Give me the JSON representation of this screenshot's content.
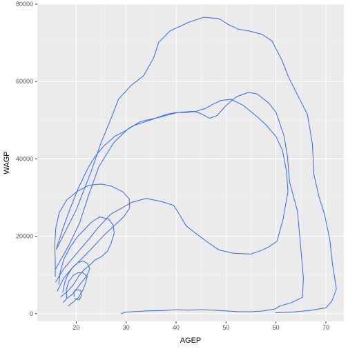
{
  "chart_data": {
    "type": "contour",
    "title": "",
    "xlabel": "AGEP",
    "ylabel": "WAGP",
    "xlim": [
      12.2,
      73.6
    ],
    "ylim": [
      -2000,
      80000
    ],
    "x_ticks": [
      20,
      30,
      40,
      50,
      60,
      70
    ],
    "y_ticks": [
      0,
      20000,
      40000,
      60000,
      80000
    ],
    "grid": true,
    "legend": "none",
    "colors": {
      "panel": "#EBEBEB",
      "grid_major": "#FFFFFF",
      "grid_minor": "#F5F5F5",
      "line": "#3366FF"
    },
    "series": [
      {
        "points": [
          [
            16,
            16600
          ],
          [
            20,
            26800
          ],
          [
            23,
            36800
          ],
          [
            25,
            44300
          ],
          [
            26.5,
            48900
          ],
          [
            28.5,
            55500
          ],
          [
            31,
            59000
          ],
          [
            33.5,
            61500
          ],
          [
            35.5,
            66100
          ],
          [
            36.5,
            70100
          ],
          [
            38.8,
            73100
          ],
          [
            42.5,
            75300
          ],
          [
            45.5,
            76600
          ],
          [
            48.5,
            76300
          ],
          [
            50.5,
            74700
          ],
          [
            52.5,
            73500
          ],
          [
            54.5,
            73100
          ],
          [
            57.2,
            72200
          ],
          [
            59.2,
            70500
          ],
          [
            61.2,
            65500
          ],
          [
            62.5,
            61200
          ],
          [
            64.8,
            55300
          ],
          [
            66.3,
            51500
          ],
          [
            67.3,
            43800
          ],
          [
            67.6,
            36000
          ],
          [
            68.6,
            30300
          ],
          [
            69.7,
            25800
          ],
          [
            70.8,
            19000
          ],
          [
            71.3,
            13000
          ],
          [
            72.1,
            6400
          ],
          [
            71.2,
            3200
          ],
          [
            70,
            1500
          ],
          [
            66.7,
            800
          ],
          [
            63.3,
            400
          ],
          [
            59.9,
            200
          ]
        ]
      },
      {
        "points": [
          [
            15.8,
            11400
          ],
          [
            18.5,
            17600
          ],
          [
            20.7,
            23500
          ],
          [
            22.5,
            30700
          ],
          [
            24.5,
            37900
          ],
          [
            27.5,
            44200
          ],
          [
            30.5,
            47900
          ],
          [
            33,
            49700
          ],
          [
            36.5,
            50700
          ],
          [
            40.3,
            52000
          ],
          [
            43.5,
            52300
          ],
          [
            45,
            51700
          ],
          [
            46.7,
            50500
          ],
          [
            48.2,
            51200
          ],
          [
            50,
            53800
          ],
          [
            52,
            56000
          ],
          [
            54.5,
            57200
          ],
          [
            56.2,
            56800
          ],
          [
            58.5,
            54500
          ],
          [
            60,
            52100
          ],
          [
            61.6,
            46000
          ],
          [
            62.3,
            40700
          ],
          [
            62.7,
            34200
          ],
          [
            64.3,
            26500
          ],
          [
            64.9,
            18100
          ],
          [
            65.5,
            9000
          ],
          [
            65.3,
            4200
          ],
          [
            63,
            2800
          ],
          [
            60.8,
            2000
          ],
          [
            59.8,
            1200
          ],
          [
            57.5,
            700
          ],
          [
            55,
            500
          ],
          [
            52.5,
            500
          ],
          [
            50,
            700
          ],
          [
            47.5,
            900
          ],
          [
            45,
            1000
          ],
          [
            42.5,
            900
          ],
          [
            40,
            1000
          ],
          [
            37.5,
            800
          ],
          [
            34,
            700
          ],
          [
            30,
            400
          ],
          [
            29,
            0
          ]
        ]
      },
      {
        "points": [
          [
            15.9,
            8200
          ],
          [
            17.5,
            11600
          ],
          [
            20.5,
            16200
          ],
          [
            22.7,
            19500
          ],
          [
            24.5,
            22400
          ],
          [
            27,
            25800
          ],
          [
            29,
            27200
          ],
          [
            31,
            28700
          ],
          [
            34,
            29800
          ],
          [
            37,
            29000
          ],
          [
            39.5,
            28000
          ],
          [
            40.5,
            26000
          ],
          [
            42,
            22700
          ],
          [
            44.5,
            20200
          ],
          [
            46.5,
            18300
          ],
          [
            48.5,
            16500
          ],
          [
            51.5,
            15600
          ],
          [
            55,
            15400
          ],
          [
            57,
            16300
          ],
          [
            58.5,
            17200
          ],
          [
            60.2,
            18700
          ],
          [
            61.4,
            24300
          ],
          [
            62.4,
            31500
          ],
          [
            62.1,
            36900
          ],
          [
            61.3,
            42200
          ],
          [
            60,
            45800
          ],
          [
            58,
            48800
          ],
          [
            56.3,
            50800
          ],
          [
            53.5,
            53800
          ],
          [
            51,
            55400
          ],
          [
            49,
            55100
          ],
          [
            47.5,
            54200
          ],
          [
            45.8,
            53000
          ],
          [
            44,
            52300
          ],
          [
            42,
            52000
          ],
          [
            40,
            52000
          ],
          [
            38,
            51500
          ],
          [
            35.2,
            50200
          ],
          [
            31.5,
            48600
          ],
          [
            29.5,
            47000
          ],
          [
            27.8,
            45900
          ],
          [
            25.5,
            43300
          ],
          [
            23.7,
            40500
          ],
          [
            22.5,
            38000
          ],
          [
            20.4,
            32400
          ],
          [
            18.8,
            27200
          ],
          [
            17.4,
            22300
          ],
          [
            16.1,
            17100
          ]
        ]
      },
      {
        "points": [
          [
            16.2,
            5800
          ],
          [
            17.5,
            9200
          ],
          [
            19.4,
            12100
          ],
          [
            21.5,
            14700
          ],
          [
            23.5,
            17400
          ],
          [
            25.5,
            20200
          ],
          [
            27.5,
            22600
          ],
          [
            29.5,
            25000
          ],
          [
            30.7,
            27300
          ],
          [
            30.6,
            29700
          ],
          [
            29.3,
            31500
          ],
          [
            27,
            33000
          ],
          [
            25,
            33500
          ],
          [
            22.5,
            33200
          ],
          [
            20.2,
            31600
          ],
          [
            18.1,
            29400
          ],
          [
            16.6,
            26100
          ],
          [
            15.9,
            22100
          ],
          [
            15.7,
            17900
          ],
          [
            15.8,
            13500
          ],
          [
            15.8,
            9600
          ]
        ]
      },
      {
        "points": [
          [
            16.9,
            4300
          ],
          [
            18.2,
            5700
          ],
          [
            19.4,
            7400
          ],
          [
            20.5,
            9700
          ],
          [
            21.5,
            11300
          ],
          [
            22.6,
            12400
          ],
          [
            23.7,
            13800
          ],
          [
            25.1,
            14800
          ],
          [
            26.3,
            16200
          ],
          [
            27,
            18300
          ],
          [
            27.6,
            20700
          ],
          [
            27.4,
            22900
          ],
          [
            26.5,
            24400
          ],
          [
            24.7,
            25000
          ],
          [
            23,
            23600
          ],
          [
            21.7,
            21800
          ],
          [
            20.2,
            19800
          ],
          [
            18.8,
            17200
          ],
          [
            17.5,
            14000
          ],
          [
            16.8,
            10800
          ],
          [
            16.5,
            7600
          ]
        ]
      },
      {
        "points": [
          [
            17.4,
            2900
          ],
          [
            18.1,
            3900
          ],
          [
            19.4,
            5200
          ],
          [
            20.9,
            7800
          ],
          [
            22.1,
            9700
          ],
          [
            22.7,
            11600
          ],
          [
            22.3,
            12900
          ],
          [
            21.4,
            13600
          ],
          [
            20.3,
            13200
          ],
          [
            19.2,
            11800
          ],
          [
            18.3,
            10000
          ],
          [
            17.7,
            8000
          ],
          [
            17.3,
            5500
          ]
        ]
      },
      {
        "points": [
          [
            18.4,
            2000
          ],
          [
            19.3,
            2900
          ],
          [
            20.4,
            4100
          ],
          [
            21.3,
            6000
          ],
          [
            21.9,
            8000
          ],
          [
            22.2,
            9600
          ],
          [
            21.4,
            10500
          ],
          [
            20.4,
            10600
          ],
          [
            19.4,
            9900
          ],
          [
            18.5,
            8300
          ],
          [
            18,
            6200
          ],
          [
            18.1,
            3900
          ]
        ]
      },
      {
        "points": [
          [
            19.7,
            3900
          ],
          [
            20.6,
            3600
          ],
          [
            21,
            4500
          ],
          [
            20.9,
            6000
          ],
          [
            19.9,
            6200
          ],
          [
            19.5,
            5500
          ],
          [
            19.6,
            4400
          ]
        ]
      }
    ]
  }
}
